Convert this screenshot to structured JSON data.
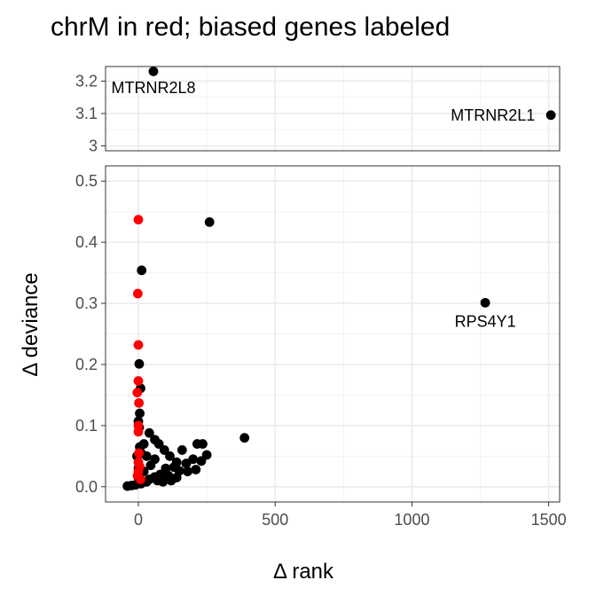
{
  "chart_data": {
    "type": "scatter",
    "title": "chrM in red; biased genes labeled",
    "xlabel": "Δ rank",
    "ylabel": "Δ deviance",
    "xlim": [
      -120,
      1540
    ],
    "x_ticks": [
      0,
      500,
      1000,
      1500
    ],
    "x_tick_labels": [
      "0",
      "500",
      "1000",
      "1500"
    ],
    "grid": true,
    "panels": [
      {
        "name": "upper",
        "ylim": [
          2.985,
          3.245
        ],
        "y_ticks": [
          3.0,
          3.1,
          3.2
        ],
        "y_tick_labels": [
          "3",
          "3.1",
          "3.2"
        ],
        "points": [
          {
            "x": 55,
            "y": 3.23,
            "color": "#000000"
          },
          {
            "x": 1508,
            "y": 3.095,
            "color": "#000000"
          }
        ]
      },
      {
        "name": "lower",
        "ylim": [
          -0.025,
          0.525
        ],
        "y_ticks": [
          0.0,
          0.1,
          0.2,
          0.3,
          0.4,
          0.5
        ],
        "y_tick_labels": [
          "0.0",
          "0.1",
          "0.2",
          "0.3",
          "0.4",
          "0.5"
        ],
        "points": [
          {
            "x": 1268,
            "y": 0.301,
            "color": "#000000"
          },
          {
            "x": 260,
            "y": 0.433,
            "color": "#000000"
          },
          {
            "x": 12,
            "y": 0.354,
            "color": "#000000"
          },
          {
            "x": 388,
            "y": 0.08,
            "color": "#000000"
          },
          {
            "x": 3,
            "y": 0.201,
            "color": "#000000"
          },
          {
            "x": 8,
            "y": 0.161,
            "color": "#000000"
          },
          {
            "x": 5,
            "y": 0.12,
            "color": "#000000"
          },
          {
            "x": 0,
            "y": 0.107,
            "color": "#000000"
          },
          {
            "x": 3,
            "y": 0.097,
            "color": "#000000"
          },
          {
            "x": 40,
            "y": 0.088,
            "color": "#000000"
          },
          {
            "x": 60,
            "y": 0.077,
            "color": "#000000"
          },
          {
            "x": 75,
            "y": 0.07,
            "color": "#000000"
          },
          {
            "x": 20,
            "y": 0.07,
            "color": "#000000"
          },
          {
            "x": 95,
            "y": 0.06,
            "color": "#000000"
          },
          {
            "x": 115,
            "y": 0.05,
            "color": "#000000"
          },
          {
            "x": 160,
            "y": 0.06,
            "color": "#000000"
          },
          {
            "x": 200,
            "y": 0.045,
            "color": "#000000"
          },
          {
            "x": 215,
            "y": 0.07,
            "color": "#000000"
          },
          {
            "x": 235,
            "y": 0.07,
            "color": "#000000"
          },
          {
            "x": 250,
            "y": 0.052,
            "color": "#000000"
          },
          {
            "x": 140,
            "y": 0.04,
            "color": "#000000"
          },
          {
            "x": 175,
            "y": 0.038,
            "color": "#000000"
          },
          {
            "x": 230,
            "y": 0.042,
            "color": "#000000"
          },
          {
            "x": 60,
            "y": 0.045,
            "color": "#000000"
          },
          {
            "x": 30,
            "y": 0.05,
            "color": "#000000"
          },
          {
            "x": 10,
            "y": 0.055,
            "color": "#000000"
          },
          {
            "x": -5,
            "y": 0.05,
            "color": "#000000"
          },
          {
            "x": 100,
            "y": 0.03,
            "color": "#000000"
          },
          {
            "x": 130,
            "y": 0.032,
            "color": "#000000"
          },
          {
            "x": 150,
            "y": 0.026,
            "color": "#000000"
          },
          {
            "x": 180,
            "y": 0.025,
            "color": "#000000"
          },
          {
            "x": 210,
            "y": 0.028,
            "color": "#000000"
          },
          {
            "x": 80,
            "y": 0.02,
            "color": "#000000"
          },
          {
            "x": 60,
            "y": 0.016,
            "color": "#000000"
          },
          {
            "x": 40,
            "y": 0.012,
            "color": "#000000"
          },
          {
            "x": 110,
            "y": 0.018,
            "color": "#000000"
          },
          {
            "x": 140,
            "y": 0.015,
            "color": "#000000"
          },
          {
            "x": 20,
            "y": 0.025,
            "color": "#000000"
          },
          {
            "x": 45,
            "y": 0.035,
            "color": "#000000"
          },
          {
            "x": 0,
            "y": 0.03,
            "color": "#000000"
          },
          {
            "x": 5,
            "y": 0.065,
            "color": "#000000"
          },
          {
            "x": 70,
            "y": 0.01,
            "color": "#000000"
          },
          {
            "x": 30,
            "y": 0.008,
            "color": "#000000"
          },
          {
            "x": 10,
            "y": 0.005,
            "color": "#000000"
          },
          {
            "x": -10,
            "y": 0.003,
            "color": "#000000"
          },
          {
            "x": -25,
            "y": 0.002,
            "color": "#000000"
          },
          {
            "x": -40,
            "y": 0.001,
            "color": "#000000"
          },
          {
            "x": 0,
            "y": 0.015,
            "color": "#000000"
          },
          {
            "x": 90,
            "y": 0.008,
            "color": "#000000"
          },
          {
            "x": 120,
            "y": 0.01,
            "color": "#000000"
          },
          {
            "x": 0,
            "y": 0.437,
            "color": "#ff0000"
          },
          {
            "x": -2,
            "y": 0.316,
            "color": "#ff0000"
          },
          {
            "x": 0,
            "y": 0.232,
            "color": "#ff0000"
          },
          {
            "x": 0,
            "y": 0.173,
            "color": "#ff0000"
          },
          {
            "x": -4,
            "y": 0.154,
            "color": "#ff0000"
          },
          {
            "x": 2,
            "y": 0.137,
            "color": "#ff0000"
          },
          {
            "x": 0,
            "y": 0.1,
            "color": "#ff0000"
          },
          {
            "x": 0,
            "y": 0.09,
            "color": "#ff0000"
          },
          {
            "x": 2,
            "y": 0.055,
            "color": "#ff0000"
          },
          {
            "x": 0,
            "y": 0.04,
            "color": "#ff0000"
          },
          {
            "x": 5,
            "y": 0.033,
            "color": "#ff0000"
          },
          {
            "x": 0,
            "y": 0.025,
            "color": "#ff0000"
          },
          {
            "x": 8,
            "y": 0.012,
            "color": "#ff0000"
          },
          {
            "x": -3,
            "y": 0.018,
            "color": "#ff0000"
          }
        ]
      }
    ],
    "annotations": [
      {
        "text": "MTRNR2L8",
        "panel": "upper",
        "x": 55,
        "y": 3.18,
        "anchor": "middle"
      },
      {
        "text": "MTRNR2L1",
        "panel": "upper",
        "x": 1450,
        "y": 3.095,
        "anchor": "end"
      },
      {
        "text": "RPS4Y1",
        "panel": "lower",
        "x": 1268,
        "y": 0.27,
        "anchor": "middle"
      }
    ],
    "colors": {
      "default_point": "#000000",
      "chrM_point": "#ff0000"
    }
  }
}
